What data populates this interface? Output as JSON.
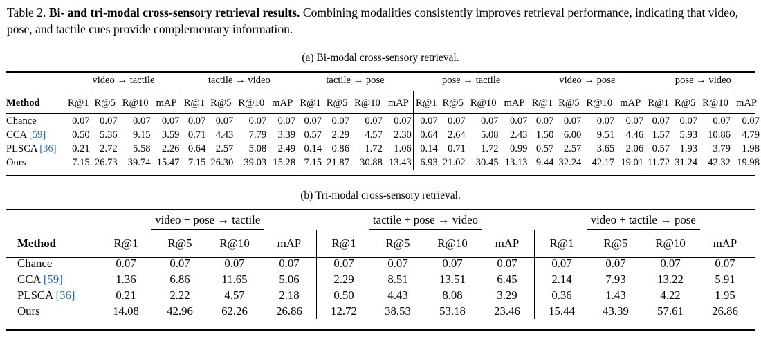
{
  "caption": {
    "label": "Table 2.",
    "title": "Bi- and tri-modal cross-sensory retrieval results.",
    "text": "Combining modalities consistently improves retrieval performance, indicating that video, pose, and tactile cues provide complementary information."
  },
  "table_a": {
    "caption": "(a) Bi-modal cross-sensory retrieval.",
    "method_header": "Method",
    "metrics": [
      "R@1",
      "R@5",
      "R@10",
      "mAP"
    ],
    "groups": [
      "video → tactile",
      "tactile → video",
      "tactile → pose",
      "pose → tactile",
      "video → pose",
      "pose → video"
    ],
    "rows": [
      {
        "name": "Chance",
        "cite": "",
        "values": [
          "0.07",
          "0.07",
          "0.07",
          "0.07",
          "0.07",
          "0.07",
          "0.07",
          "0.07",
          "0.07",
          "0.07",
          "0.07",
          "0.07",
          "0.07",
          "0.07",
          "0.07",
          "0.07",
          "0.07",
          "0.07",
          "0.07",
          "0.07",
          "0.07",
          "0.07",
          "0.07",
          "0.07"
        ]
      },
      {
        "name": "CCA",
        "cite": "[59]",
        "values": [
          "0.50",
          "5.36",
          "9.15",
          "3.59",
          "0.71",
          "4.43",
          "7.79",
          "3.39",
          "0.57",
          "2.29",
          "4.57",
          "2.30",
          "0.64",
          "2.64",
          "5.08",
          "2.43",
          "1.50",
          "6.00",
          "9.51",
          "4.46",
          "1.57",
          "5.93",
          "10.86",
          "4.79"
        ]
      },
      {
        "name": "PLSCA",
        "cite": "[36]",
        "values": [
          "0.21",
          "2.72",
          "5.58",
          "2.26",
          "0.64",
          "2.57",
          "5.08",
          "2.49",
          "0.14",
          "0.86",
          "1.72",
          "1.06",
          "0.14",
          "0.71",
          "1.72",
          "0.99",
          "0.57",
          "2.57",
          "3.65",
          "2.06",
          "0.57",
          "1.93",
          "3.79",
          "1.98"
        ]
      },
      {
        "name": "Ours",
        "cite": "",
        "values": [
          "7.15",
          "26.73",
          "39.74",
          "15.47",
          "7.15",
          "26.30",
          "39.03",
          "15.28",
          "7.15",
          "21.87",
          "30.88",
          "13.43",
          "6.93",
          "21.02",
          "30.45",
          "13.13",
          "9.44",
          "32.24",
          "42.17",
          "19.01",
          "11.72",
          "31.24",
          "42.32",
          "19.98"
        ]
      }
    ]
  },
  "table_b": {
    "caption": "(b) Tri-modal cross-sensory retrieval.",
    "method_header": "Method",
    "metrics": [
      "R@1",
      "R@5",
      "R@10",
      "mAP"
    ],
    "groups": [
      "video + pose → tactile",
      "tactile + pose → video",
      "video + tactile → pose"
    ],
    "rows": [
      {
        "name": "Chance",
        "cite": "",
        "values": [
          "0.07",
          "0.07",
          "0.07",
          "0.07",
          "0.07",
          "0.07",
          "0.07",
          "0.07",
          "0.07",
          "0.07",
          "0.07",
          "0.07"
        ]
      },
      {
        "name": "CCA",
        "cite": "[59]",
        "values": [
          "1.36",
          "6.86",
          "11.65",
          "5.06",
          "2.29",
          "8.51",
          "13.51",
          "6.45",
          "2.14",
          "7.93",
          "13.22",
          "5.91"
        ]
      },
      {
        "name": "PLSCA",
        "cite": "[36]",
        "values": [
          "0.21",
          "2.22",
          "4.57",
          "2.18",
          "0.50",
          "4.43",
          "8.08",
          "3.29",
          "0.36",
          "1.43",
          "4.22",
          "1.95"
        ]
      },
      {
        "name": "Ours",
        "cite": "",
        "values": [
          "14.08",
          "42.96",
          "62.26",
          "26.86",
          "12.72",
          "38.53",
          "53.18",
          "23.46",
          "15.44",
          "43.39",
          "57.61",
          "26.86"
        ]
      }
    ]
  }
}
